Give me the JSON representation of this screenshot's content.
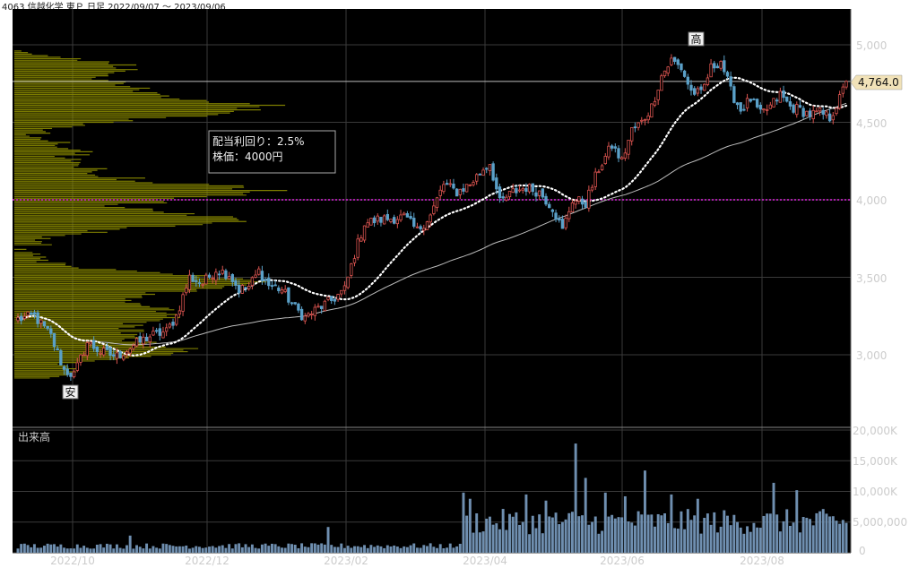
{
  "header": {
    "title": "4063 信越化学 東Ｐ 日足 2022/09/07 〜 2023/09/06"
  },
  "chart_data": {
    "type": "candlestick",
    "price_axis": {
      "ticks": [
        "5,000",
        "4,500",
        "4,000",
        "3,500",
        "3,000"
      ],
      "tick_values": [
        5000,
        4500,
        4000,
        3500,
        3000
      ]
    },
    "volume_axis": {
      "title": "出来高",
      "ticks": [
        "20,000K",
        "15,000K",
        "10,000K",
        "5,000,000",
        "0"
      ],
      "tick_values": [
        20000000,
        15000000,
        10000000,
        5000000,
        0
      ]
    },
    "x_ticks": [
      "2022/10",
      "2022/12",
      "2023/02",
      "2023/04",
      "2023/06",
      "2023/08"
    ],
    "last_price_label": "4,764.0",
    "last_price": 4764,
    "reference_line_value": 4000,
    "high_marker": "高",
    "low_marker": "安",
    "info_box": {
      "line1": "配当利回り：2.5%",
      "line2": "株価：4000円"
    },
    "price_anchors": [
      [
        0,
        3230
      ],
      [
        5,
        3250
      ],
      [
        10,
        3120
      ],
      [
        14,
        2900
      ],
      [
        17,
        2870
      ],
      [
        21,
        3080
      ],
      [
        25,
        3020
      ],
      [
        30,
        2990
      ],
      [
        35,
        3060
      ],
      [
        40,
        3120
      ],
      [
        45,
        3150
      ],
      [
        48,
        3250
      ],
      [
        52,
        3500
      ],
      [
        56,
        3460
      ],
      [
        60,
        3550
      ],
      [
        64,
        3520
      ],
      [
        67,
        3420
      ],
      [
        70,
        3440
      ],
      [
        73,
        3540
      ],
      [
        76,
        3450
      ],
      [
        80,
        3420
      ],
      [
        84,
        3300
      ],
      [
        87,
        3240
      ],
      [
        91,
        3300
      ],
      [
        95,
        3350
      ],
      [
        99,
        3420
      ],
      [
        102,
        3650
      ],
      [
        105,
        3850
      ],
      [
        109,
        3870
      ],
      [
        113,
        3880
      ],
      [
        117,
        3890
      ],
      [
        121,
        3800
      ],
      [
        125,
        3900
      ],
      [
        129,
        4100
      ],
      [
        133,
        4050
      ],
      [
        137,
        4100
      ],
      [
        141,
        4200
      ],
      [
        143,
        4240
      ],
      [
        146,
        3980
      ],
      [
        150,
        4050
      ],
      [
        154,
        4080
      ],
      [
        158,
        4050
      ],
      [
        162,
        3950
      ],
      [
        165,
        3800
      ],
      [
        168,
        4000
      ],
      [
        172,
        3980
      ],
      [
        176,
        4200
      ],
      [
        180,
        4350
      ],
      [
        183,
        4250
      ],
      [
        186,
        4450
      ],
      [
        189,
        4500
      ],
      [
        192,
        4600
      ],
      [
        195,
        4800
      ],
      [
        198,
        4900
      ],
      [
        201,
        4850
      ],
      [
        204,
        4700
      ],
      [
        207,
        4680
      ],
      [
        210,
        4850
      ],
      [
        213,
        4900
      ],
      [
        216,
        4700
      ],
      [
        219,
        4580
      ],
      [
        222,
        4650
      ],
      [
        225,
        4550
      ],
      [
        228,
        4600
      ],
      [
        231,
        4680
      ],
      [
        234,
        4600
      ],
      [
        237,
        4580
      ],
      [
        240,
        4550
      ],
      [
        243,
        4560
      ],
      [
        246,
        4530
      ],
      [
        249,
        4650
      ],
      [
        251,
        4764
      ]
    ],
    "volume_levels": [
      {
        "from": 0,
        "to": 134,
        "value": 1200000
      },
      {
        "from": 135,
        "to": 251,
        "value": 5500000
      }
    ],
    "volume_spikes": [
      {
        "index": 34,
        "value": 2800000
      },
      {
        "index": 94,
        "value": 4200000
      },
      {
        "index": 135,
        "value": 9800000
      },
      {
        "index": 137,
        "value": 8800000
      },
      {
        "index": 154,
        "value": 9500000
      },
      {
        "index": 160,
        "value": 8500000
      },
      {
        "index": 169,
        "value": 17800000
      },
      {
        "index": 172,
        "value": 12200000
      },
      {
        "index": 178,
        "value": 9800000
      },
      {
        "index": 184,
        "value": 9200000
      },
      {
        "index": 190,
        "value": 13400000
      },
      {
        "index": 198,
        "value": 9500000
      },
      {
        "index": 206,
        "value": 8800000
      },
      {
        "index": 229,
        "value": 11400000
      },
      {
        "index": 236,
        "value": 10200000
      }
    ],
    "moving_average_short_days": 25,
    "moving_average_long_days": 75,
    "colors": {
      "background": "#000000",
      "grid": "#3a3a3a",
      "up_candle": "#d9534f",
      "down_candle": "#5aa0c8",
      "volume": "#6f8fb0",
      "ma_short": "#ffffff",
      "ma_long": "#bbbbbb",
      "reference_line": "#e020e0",
      "last_price_line": "#bbbbbb",
      "volume_profile": "#8a8a00"
    }
  }
}
